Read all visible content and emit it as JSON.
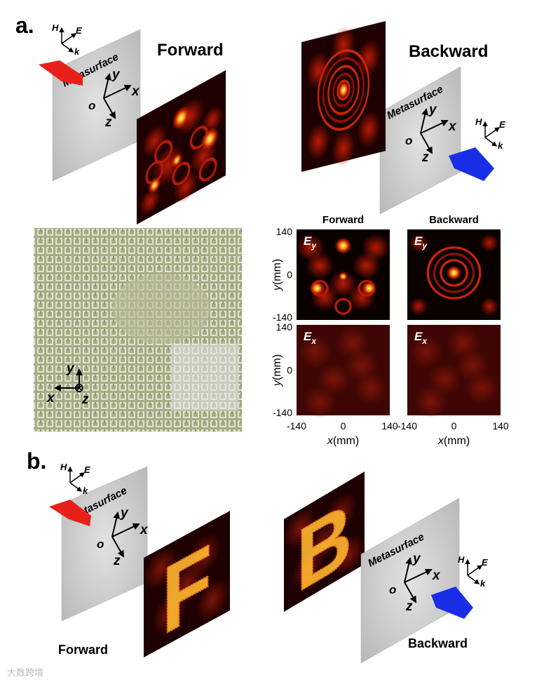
{
  "panel_a": {
    "label": "a.",
    "forward": {
      "title": "Forward",
      "surface": "Metasurface",
      "field": {
        "H": "H",
        "E": "E",
        "k": "k"
      },
      "axes": {
        "x": "x",
        "y": "y",
        "z": "z",
        "o": "o"
      }
    },
    "backward": {
      "title": "Backward",
      "surface": "Metasurface",
      "field": {
        "H": "H",
        "E": "E",
        "k": "k"
      },
      "axes": {
        "x": "x",
        "y": "y",
        "z": "z",
        "o": "o"
      }
    },
    "sample": {
      "axes": {
        "x": "x",
        "y": "y",
        "z": "z"
      }
    },
    "maps": {
      "columns": [
        "Forward",
        "Backward"
      ],
      "rows": [
        {
          "component": "E",
          "sub": "y"
        },
        {
          "component": "E",
          "sub": "x"
        }
      ],
      "y_axis": {
        "var": "y",
        "unit": "(mm)"
      },
      "x_axis": {
        "var": "x",
        "unit": "(mm)"
      },
      "yticks": [
        "140",
        "0",
        "-140"
      ],
      "xticks": [
        "-140",
        "0",
        "140"
      ]
    }
  },
  "panel_b": {
    "label": "b.",
    "forward": {
      "caption": "Forward",
      "surface": "Metasurface",
      "field": {
        "H": "H",
        "E": "E",
        "k": "k"
      },
      "axes": {
        "x": "x",
        "y": "y",
        "z": "z",
        "o": "o"
      },
      "image_letter": "F"
    },
    "backward": {
      "caption": "Backward",
      "surface": "Metasurface",
      "field": {
        "H": "H",
        "E": "E",
        "k": "k"
      },
      "axes": {
        "x": "x",
        "y": "y",
        "z": "z",
        "o": "o"
      },
      "image_letter": "B"
    }
  },
  "watermark": "大数跨境"
}
